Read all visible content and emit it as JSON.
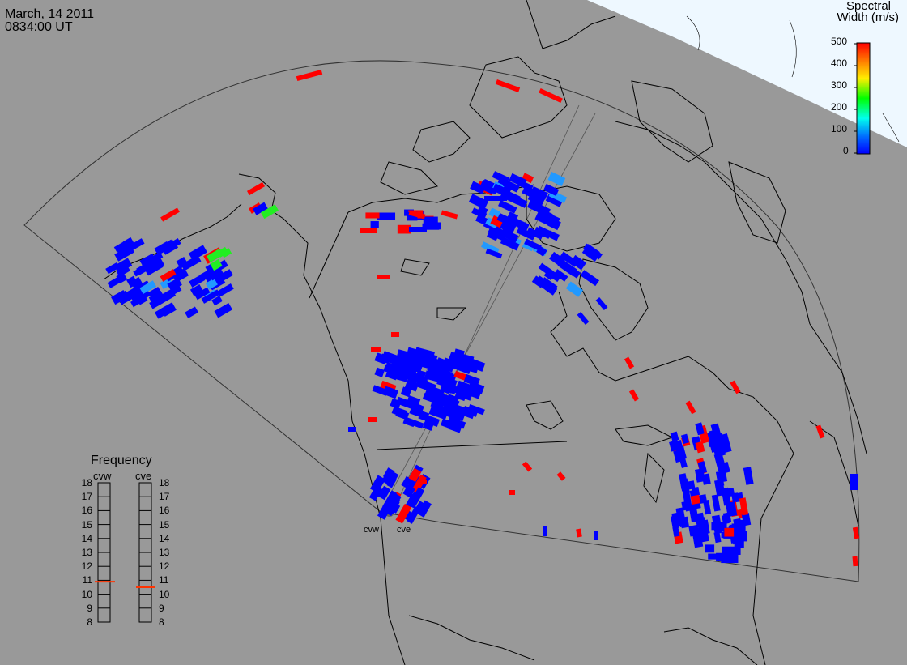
{
  "header": {
    "date": "March, 14 2011",
    "time": "0834:00 UT"
  },
  "legend": {
    "title_line1": "Spectral",
    "title_line2": "Width (m/s)",
    "ticks": [
      "500",
      "400",
      "300",
      "200",
      "100",
      "0"
    ],
    "min": 0,
    "max": 500,
    "colors": [
      "#ff0000",
      "#ff8800",
      "#ffee00",
      "#00ff00",
      "#00ffee",
      "#0066ff",
      "#0000ff"
    ]
  },
  "frequency": {
    "title": "Frequency",
    "radars": [
      {
        "name": "cvw",
        "value_mhz": 10.9
      },
      {
        "name": "cve",
        "value_mhz": 10.5
      }
    ],
    "scale": [
      "18",
      "17",
      "16",
      "15",
      "14",
      "13",
      "12",
      "11",
      "10",
      "9",
      "8"
    ],
    "marker_color": "#ff3300"
  },
  "sites": [
    {
      "name": "cvw"
    },
    {
      "name": "cve"
    }
  ],
  "colors": {
    "background": "#999999",
    "land_outline": "#000000",
    "fov_outline": "#333333",
    "daylight": "#eef8ff",
    "echo_low": "#0000ff",
    "echo_high": "#ff0000"
  }
}
